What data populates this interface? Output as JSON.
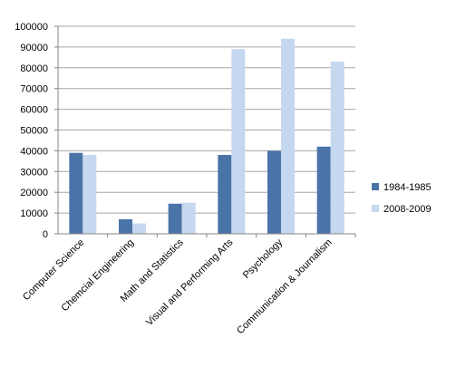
{
  "chart_data": {
    "type": "bar",
    "title": "",
    "xlabel": "",
    "ylabel": "",
    "categories": [
      "Computer Science",
      "Chemcial Engineering",
      "Math and Statistics",
      "Visual and Performing Arts",
      "Psychology",
      "Communication & Journalism"
    ],
    "series": [
      {
        "name": "1984-1985",
        "color": "#4a73a8",
        "values": [
          39000,
          7000,
          14500,
          38000,
          40000,
          42000
        ]
      },
      {
        "name": "2008-2009",
        "color": "#c6d8ef",
        "values": [
          38000,
          5000,
          15000,
          89000,
          94000,
          83000
        ]
      }
    ],
    "ylim": [
      0,
      100000
    ],
    "yticks": [
      0,
      10000,
      20000,
      30000,
      40000,
      50000,
      60000,
      70000,
      80000,
      90000,
      100000
    ],
    "grid": true,
    "legend_position": "right"
  }
}
